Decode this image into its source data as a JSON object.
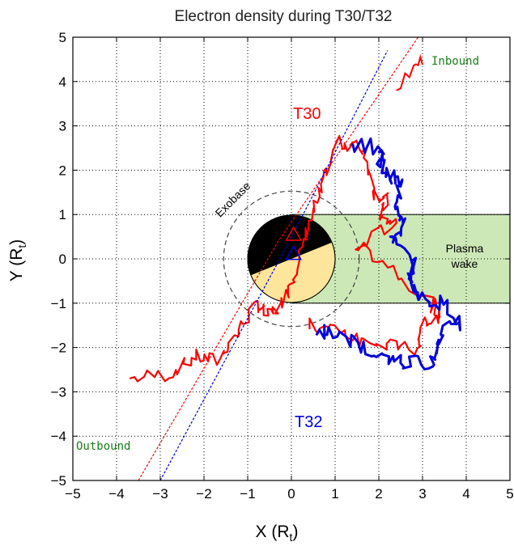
{
  "chart_data": {
    "type": "line",
    "title": "Electron density during T30/T32",
    "xlabel": "X (R",
    "xlabel_sub": "t",
    "xlabel_close": ")",
    "ylabel": "Y (R",
    "ylabel_sub": "t",
    "ylabel_close": ")",
    "xlim": [
      -5,
      5
    ],
    "ylim": [
      -5,
      5
    ],
    "xticks": [
      "−5",
      "−4",
      "−3",
      "−2",
      "−1",
      "0",
      "1",
      "2",
      "3",
      "4",
      "5"
    ],
    "yticks": [
      "5",
      "4",
      "3",
      "2",
      "1",
      "0",
      "−1",
      "−2",
      "−3",
      "−4",
      "−5"
    ],
    "grid": true,
    "series": [
      {
        "name": "T30",
        "color": "#ff0000",
        "track": [
          [
            -3.5,
            -5
          ],
          [
            -0.3,
            0.4
          ],
          [
            2.9,
            5
          ]
        ],
        "density_path": [
          [
            -3.7,
            -2.7
          ],
          [
            -2.8,
            -2.6
          ],
          [
            -2.2,
            -2.2
          ],
          [
            -1.7,
            -2.3
          ],
          [
            -1.2,
            -1.6
          ],
          [
            -0.8,
            -1.0
          ],
          [
            -0.5,
            -1.3
          ],
          [
            -0.2,
            -1.0
          ],
          [
            0.0,
            -0.5
          ],
          [
            0.3,
            0.3
          ],
          [
            0.5,
            1.0
          ],
          [
            0.7,
            1.7
          ],
          [
            1.0,
            2.6
          ],
          [
            1.4,
            2.6
          ],
          [
            1.7,
            2.4
          ],
          [
            1.9,
            1.5
          ],
          [
            2.2,
            1.3
          ],
          [
            2.0,
            0.9
          ],
          [
            2.4,
            0.8
          ],
          [
            1.5,
            0.3
          ],
          [
            2.2,
            -0.1
          ],
          [
            3.2,
            -1.0
          ],
          [
            3.4,
            -1.3
          ],
          [
            3.0,
            -1.5
          ],
          [
            2.9,
            -2.1
          ],
          [
            2.3,
            -1.9
          ],
          [
            1.7,
            -1.9
          ],
          [
            1.0,
            -1.6
          ],
          [
            0.4,
            -1.5
          ],
          [
            2.4,
            3.8
          ],
          [
            2.8,
            4.3
          ],
          [
            3.0,
            4.5
          ]
        ]
      },
      {
        "name": "T32",
        "color": "#0000dd",
        "track": [
          [
            -3.0,
            -5
          ],
          [
            -0.1,
            0.3
          ],
          [
            2.2,
            4.7
          ]
        ],
        "density_path": [
          [
            1.4,
            2.6
          ],
          [
            2.1,
            2.5
          ],
          [
            2.0,
            2.2
          ],
          [
            2.2,
            1.9
          ],
          [
            2.5,
            1.7
          ],
          [
            2.4,
            1.3
          ],
          [
            2.6,
            0.8
          ],
          [
            2.3,
            0.4
          ],
          [
            2.8,
            -0.1
          ],
          [
            2.7,
            -0.5
          ],
          [
            3.0,
            -0.9
          ],
          [
            3.5,
            -1.0
          ],
          [
            3.9,
            -1.5
          ],
          [
            3.5,
            -1.6
          ],
          [
            3.3,
            -2.0
          ],
          [
            3.2,
            -2.4
          ],
          [
            2.6,
            -2.3
          ],
          [
            2.2,
            -2.2
          ],
          [
            1.6,
            -2.0
          ],
          [
            1.0,
            -1.7
          ],
          [
            0.6,
            -1.6
          ]
        ]
      }
    ],
    "annotations": {
      "inbound": "Inbound",
      "outbound": "Outbound",
      "t30": "T30",
      "t32": "T32",
      "exobase": "Exobase",
      "plasma_wake_line1": "Plasma",
      "plasma_wake_line2": "wake"
    },
    "colors": {
      "wake_fill": "#cce8b6",
      "moon_dark": "#000000",
      "moon_light": "#fde59b",
      "labels_green": "#1a7d1a"
    }
  }
}
